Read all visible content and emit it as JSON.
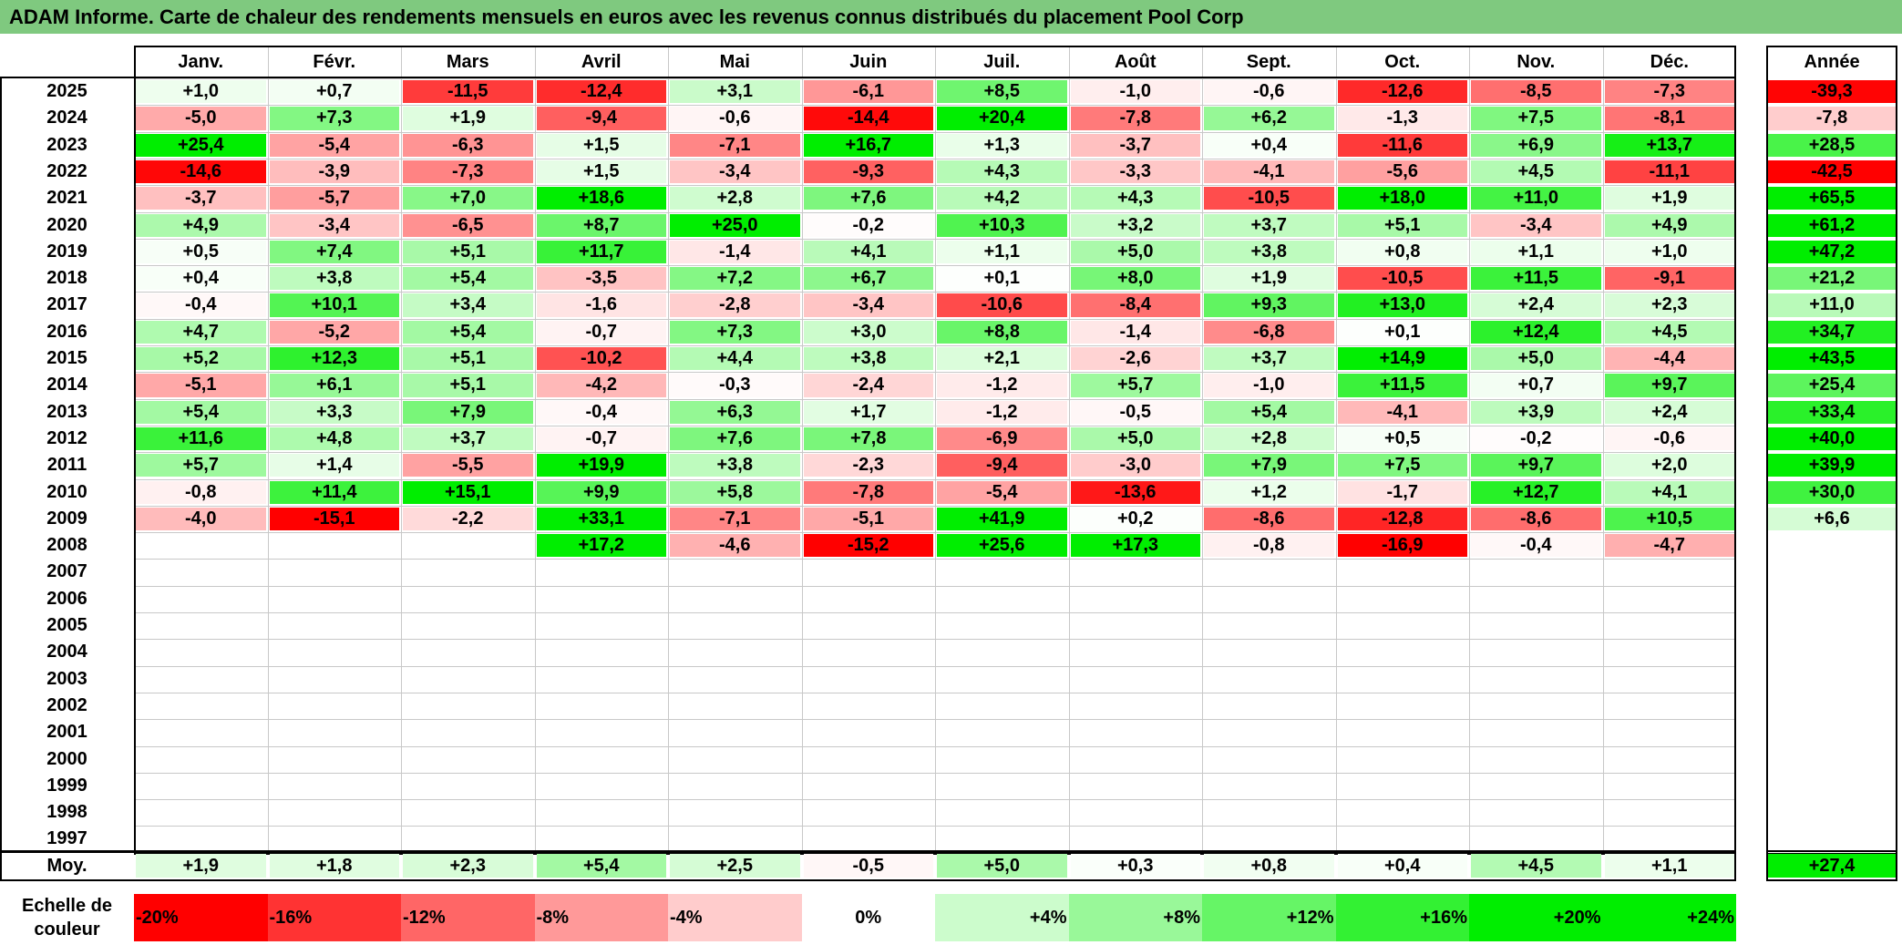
{
  "title": "ADAM Informe. Carte de chaleur des rendements mensuels en euros avec les revenus connus distribués du placement Pool Corp",
  "chart_data": {
    "type": "heatmap",
    "columns": [
      "Janv.",
      "Févr.",
      "Mars",
      "Avril",
      "Mai",
      "Juin",
      "Juil.",
      "Août",
      "Sept.",
      "Oct.",
      "Nov.",
      "Déc."
    ],
    "annual_header": "Année",
    "rows": [
      {
        "year": "2025",
        "values": [
          1.0,
          0.7,
          -11.5,
          -12.4,
          3.1,
          -6.1,
          8.5,
          -1.0,
          -0.6,
          -12.6,
          -8.5,
          -7.3
        ],
        "annual": -39.3
      },
      {
        "year": "2024",
        "values": [
          -5.0,
          7.3,
          1.9,
          -9.4,
          -0.6,
          -14.4,
          20.4,
          -7.8,
          6.2,
          -1.3,
          7.5,
          -8.1
        ],
        "annual": -7.8
      },
      {
        "year": "2023",
        "values": [
          25.4,
          -5.4,
          -6.3,
          1.5,
          -7.1,
          16.7,
          1.3,
          -3.7,
          0.4,
          -11.6,
          6.9,
          13.7
        ],
        "annual": 28.5
      },
      {
        "year": "2022",
        "values": [
          -14.6,
          -3.9,
          -7.3,
          1.5,
          -3.4,
          -9.3,
          4.3,
          -3.3,
          -4.1,
          -5.6,
          4.5,
          -11.1
        ],
        "annual": -42.5
      },
      {
        "year": "2021",
        "values": [
          -3.7,
          -5.7,
          7.0,
          18.6,
          2.8,
          7.6,
          4.2,
          4.3,
          -10.5,
          18.0,
          11.0,
          1.9
        ],
        "annual": 65.5
      },
      {
        "year": "2020",
        "values": [
          4.9,
          -3.4,
          -6.5,
          8.7,
          25.0,
          -0.2,
          10.3,
          3.2,
          3.7,
          5.1,
          -3.4,
          4.9
        ],
        "annual": 61.2
      },
      {
        "year": "2019",
        "values": [
          0.5,
          7.4,
          5.1,
          11.7,
          -1.4,
          4.1,
          1.1,
          5.0,
          3.8,
          0.8,
          1.1,
          1.0
        ],
        "annual": 47.2
      },
      {
        "year": "2018",
        "values": [
          0.4,
          3.8,
          5.4,
          -3.5,
          7.2,
          6.7,
          0.1,
          8.0,
          1.9,
          -10.5,
          11.5,
          -9.1
        ],
        "annual": 21.2
      },
      {
        "year": "2017",
        "values": [
          -0.4,
          10.1,
          3.4,
          -1.6,
          -2.8,
          -3.4,
          -10.6,
          -8.4,
          9.3,
          13.0,
          2.4,
          2.3
        ],
        "annual": 11.0
      },
      {
        "year": "2016",
        "values": [
          4.7,
          -5.2,
          5.4,
          -0.7,
          7.3,
          3.0,
          8.8,
          -1.4,
          -6.8,
          0.1,
          12.4,
          4.5
        ],
        "annual": 34.7
      },
      {
        "year": "2015",
        "values": [
          5.2,
          12.3,
          5.1,
          -10.2,
          4.4,
          3.8,
          2.1,
          -2.6,
          3.7,
          14.9,
          5.0,
          -4.4
        ],
        "annual": 43.5
      },
      {
        "year": "2014",
        "values": [
          -5.1,
          6.1,
          5.1,
          -4.2,
          -0.3,
          -2.4,
          -1.2,
          5.7,
          -1.0,
          11.5,
          0.7,
          9.7
        ],
        "annual": 25.4
      },
      {
        "year": "2013",
        "values": [
          5.4,
          3.3,
          7.9,
          -0.4,
          6.3,
          1.7,
          -1.2,
          -0.5,
          5.4,
          -4.1,
          3.9,
          2.4
        ],
        "annual": 33.4
      },
      {
        "year": "2012",
        "values": [
          11.6,
          4.8,
          3.7,
          -0.7,
          7.6,
          7.8,
          -6.9,
          5.0,
          2.8,
          0.5,
          -0.2,
          -0.6
        ],
        "annual": 40.0
      },
      {
        "year": "2011",
        "values": [
          5.7,
          1.4,
          -5.5,
          19.9,
          3.8,
          -2.3,
          -9.4,
          -3.0,
          7.9,
          7.5,
          9.7,
          2.0
        ],
        "annual": 39.9
      },
      {
        "year": "2010",
        "values": [
          -0.8,
          11.4,
          15.1,
          9.9,
          5.8,
          -7.8,
          -5.4,
          -13.6,
          1.2,
          -1.7,
          12.7,
          4.1
        ],
        "annual": 30.0
      },
      {
        "year": "2009",
        "values": [
          -4.0,
          -15.1,
          -2.2,
          33.1,
          -7.1,
          -5.1,
          41.9,
          0.2,
          -8.6,
          -12.8,
          -8.6,
          10.5
        ],
        "annual": 6.6
      },
      {
        "year": "2008",
        "values": [
          null,
          null,
          null,
          17.2,
          -4.6,
          -15.2,
          25.6,
          17.3,
          -0.8,
          -16.9,
          -0.4,
          -4.7
        ],
        "annual": null
      },
      {
        "year": "2007",
        "values": [
          null,
          null,
          null,
          null,
          null,
          null,
          null,
          null,
          null,
          null,
          null,
          null
        ],
        "annual": null
      },
      {
        "year": "2006",
        "values": [
          null,
          null,
          null,
          null,
          null,
          null,
          null,
          null,
          null,
          null,
          null,
          null
        ],
        "annual": null
      },
      {
        "year": "2005",
        "values": [
          null,
          null,
          null,
          null,
          null,
          null,
          null,
          null,
          null,
          null,
          null,
          null
        ],
        "annual": null
      },
      {
        "year": "2004",
        "values": [
          null,
          null,
          null,
          null,
          null,
          null,
          null,
          null,
          null,
          null,
          null,
          null
        ],
        "annual": null
      },
      {
        "year": "2003",
        "values": [
          null,
          null,
          null,
          null,
          null,
          null,
          null,
          null,
          null,
          null,
          null,
          null
        ],
        "annual": null
      },
      {
        "year": "2002",
        "values": [
          null,
          null,
          null,
          null,
          null,
          null,
          null,
          null,
          null,
          null,
          null,
          null
        ],
        "annual": null
      },
      {
        "year": "2001",
        "values": [
          null,
          null,
          null,
          null,
          null,
          null,
          null,
          null,
          null,
          null,
          null,
          null
        ],
        "annual": null
      },
      {
        "year": "2000",
        "values": [
          null,
          null,
          null,
          null,
          null,
          null,
          null,
          null,
          null,
          null,
          null,
          null
        ],
        "annual": null
      },
      {
        "year": "1999",
        "values": [
          null,
          null,
          null,
          null,
          null,
          null,
          null,
          null,
          null,
          null,
          null,
          null
        ],
        "annual": null
      },
      {
        "year": "1998",
        "values": [
          null,
          null,
          null,
          null,
          null,
          null,
          null,
          null,
          null,
          null,
          null,
          null
        ],
        "annual": null
      },
      {
        "year": "1997",
        "values": [
          null,
          null,
          null,
          null,
          null,
          null,
          null,
          null,
          null,
          null,
          null,
          null
        ],
        "annual": null
      }
    ],
    "average": {
      "label": "Moy.",
      "values": [
        1.9,
        1.8,
        2.3,
        5.4,
        2.5,
        -0.5,
        5.0,
        0.3,
        0.8,
        0.4,
        4.5,
        1.1
      ],
      "annual": 27.4
    },
    "scale": {
      "label": "Echelle de couleur",
      "stops": [
        "-20%",
        "-16%",
        "-12%",
        "-8%",
        "-4%",
        "0%",
        "+4%",
        "+8%",
        "+12%",
        "+16%",
        "+20%",
        "+24%"
      ]
    },
    "colors": {
      "negative": "#ff0000",
      "zero": "#ffffff",
      "positive": "#00ee00",
      "title_bar": "#7fc97f"
    }
  }
}
